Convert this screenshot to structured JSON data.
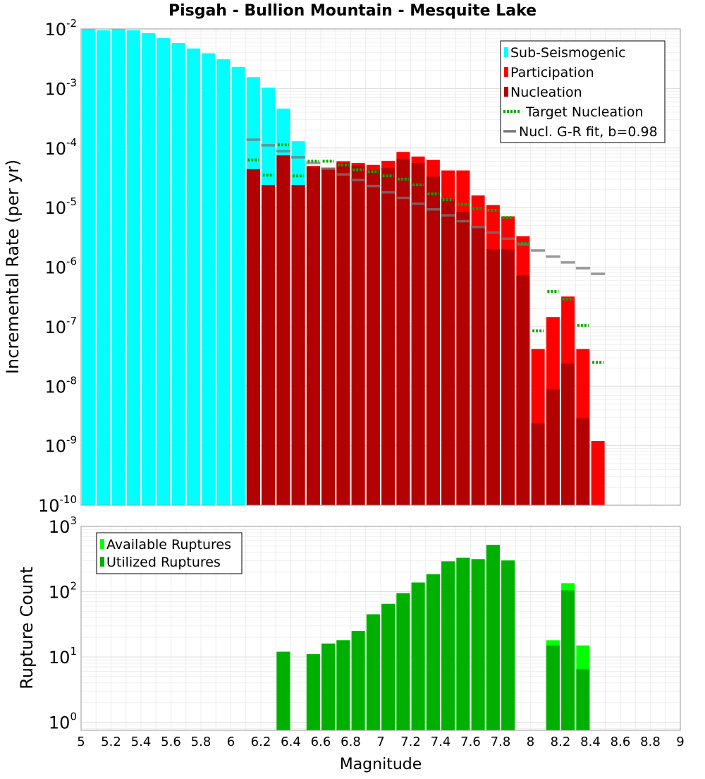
{
  "chart_data": [
    {
      "type": "bar",
      "title": "Pisgah - Bullion Mountain - Mesquite Lake",
      "ylabel": "Incremental Rate (per yr)",
      "xlabel": "",
      "xlim": [
        5,
        9
      ],
      "ylim": [
        1e-10,
        0.01
      ],
      "yscale": "log",
      "grid": true,
      "legend_position": "top-right",
      "y_tick_labels": [
        {
          "base": "10",
          "exp": "-10",
          "value": 1e-10
        },
        {
          "base": "10",
          "exp": "-9",
          "value": 1e-09
        },
        {
          "base": "10",
          "exp": "-8",
          "value": 1e-08
        },
        {
          "base": "10",
          "exp": "-7",
          "value": 1e-07
        },
        {
          "base": "10",
          "exp": "-6",
          "value": 1e-06
        },
        {
          "base": "10",
          "exp": "-5",
          "value": 1e-05
        },
        {
          "base": "10",
          "exp": "-4",
          "value": 0.0001
        },
        {
          "base": "10",
          "exp": "-3",
          "value": 0.001
        },
        {
          "base": "10",
          "exp": "-2",
          "value": 0.01
        }
      ],
      "series": [
        {
          "name": "Sub-Seismogenic",
          "kind": "bar",
          "color": "#00ffff",
          "x": [
            5.05,
            5.15,
            5.25,
            5.35,
            5.45,
            5.55,
            5.65,
            5.75,
            5.85,
            5.95,
            6.05,
            6.15,
            6.25,
            6.35,
            6.45
          ],
          "values": [
            0.011,
            0.0095,
            0.0105,
            0.0095,
            0.0085,
            0.007,
            0.0058,
            0.0047,
            0.0039,
            0.0031,
            0.0023,
            0.00155,
            0.00103,
            0.00046,
            0.00013
          ]
        },
        {
          "name": "Participation",
          "kind": "bar",
          "color": "#ff0000",
          "x": [
            6.15,
            6.25,
            6.35,
            6.45,
            6.55,
            6.65,
            6.75,
            6.85,
            6.95,
            7.05,
            7.15,
            7.25,
            7.35,
            7.45,
            7.55,
            7.65,
            7.75,
            7.85,
            7.95,
            8.05,
            8.15,
            8.25,
            8.35,
            8.45
          ],
          "values": [
            4.4e-05,
            2.4e-05,
            7.5e-05,
            2.4e-05,
            5e-05,
            4.6e-05,
            6e-05,
            5.6e-05,
            5.2e-05,
            6.1e-05,
            8.6e-05,
            7.2e-05,
            6.3e-05,
            4.2e-05,
            4.2e-05,
            1.6e-05,
            1.1e-05,
            7.1e-06,
            3.3e-06,
            4.2e-08,
            1.45e-07,
            3.2e-07,
            4.2e-08,
            1.2e-09
          ]
        },
        {
          "name": "Nucleation",
          "kind": "bar",
          "color": "#b30000",
          "x": [
            6.15,
            6.25,
            6.35,
            6.45,
            6.55,
            6.65,
            6.75,
            6.85,
            6.95,
            7.05,
            7.15,
            7.25,
            7.35,
            7.45,
            7.55,
            7.65,
            7.75,
            7.85,
            7.95,
            8.05,
            8.15,
            8.25,
            8.35
          ],
          "values": [
            4.4e-05,
            2.4e-05,
            7.5e-05,
            2.4e-05,
            4.8e-05,
            4.4e-05,
            5.6e-05,
            5.1e-05,
            4.3e-05,
            4.6e-05,
            6.5e-05,
            5.6e-05,
            3.3e-05,
            1.4e-05,
            8.5e-06,
            4.9e-06,
            2e-06,
            2e-06,
            7.2e-07,
            2.4e-09,
            9e-09,
            2.4e-08,
            2.9e-09
          ]
        },
        {
          "name": "Target Nucleation",
          "kind": "dotted-step",
          "color": "#00aa00",
          "x": [
            6.15,
            6.25,
            6.35,
            6.45,
            6.55,
            6.65,
            6.75,
            6.85,
            6.95,
            7.05,
            7.15,
            7.25,
            7.35,
            7.45,
            7.55,
            7.65,
            7.75,
            7.85,
            7.95,
            8.05,
            8.15,
            8.25,
            8.35,
            8.45
          ],
          "values": [
            6.3e-05,
            3.5e-05,
            0.000113,
            3.4e-05,
            6e-05,
            6e-05,
            5.2e-05,
            4.3e-05,
            4e-05,
            3.4e-05,
            3e-05,
            2.4e-05,
            1.7e-05,
            1.35e-05,
            1.13e-05,
            9.6e-06,
            9e-06,
            6.8e-06,
            2.5e-06,
            8.5e-08,
            3.9e-07,
            2.9e-07,
            1.05e-07,
            2.5e-08
          ]
        },
        {
          "name": "Nucl. G-R fit, b=0.98",
          "kind": "step",
          "color": "#777777",
          "x": [
            6.15,
            6.25,
            6.35,
            6.45,
            6.55,
            6.65,
            6.75,
            6.85,
            6.95,
            7.05,
            7.15,
            7.25,
            7.35,
            7.45,
            7.55,
            7.65,
            7.75,
            7.85,
            7.95,
            8.05,
            8.15,
            8.25,
            8.35,
            8.45
          ],
          "values": [
            0.000138,
            0.000111,
            8.8e-05,
            7e-05,
            5.6e-05,
            4.5e-05,
            3.6e-05,
            2.9e-05,
            2.3e-05,
            1.8e-05,
            1.45e-05,
            1.16e-05,
            9.3e-06,
            7.4e-06,
            5.9e-06,
            4.7e-06,
            3.8e-06,
            3e-06,
            2.4e-06,
            1.9e-06,
            1.5e-06,
            1.2e-06,
            9.6e-07,
            7.7e-07
          ]
        }
      ]
    },
    {
      "type": "bar",
      "title": "",
      "ylabel": "Rupture Count",
      "xlabel": "Magnitude",
      "xlim": [
        5,
        9
      ],
      "ylim": [
        0.75,
        1000
      ],
      "yscale": "log",
      "grid": true,
      "legend_position": "top-left",
      "x_tick_labels": [
        "5",
        "5.2",
        "5.4",
        "5.6",
        "5.8",
        "6",
        "6.2",
        "6.4",
        "6.6",
        "6.8",
        "7",
        "7.2",
        "7.4",
        "7.6",
        "7.8",
        "8",
        "8.2",
        "8.4",
        "8.6",
        "8.8",
        "9"
      ],
      "y_tick_labels": [
        {
          "base": "10",
          "exp": "0",
          "value": 1
        },
        {
          "base": "10",
          "exp": "1",
          "value": 10
        },
        {
          "base": "10",
          "exp": "2",
          "value": 100
        },
        {
          "base": "10",
          "exp": "3",
          "value": 1000
        }
      ],
      "series": [
        {
          "name": "Available Ruptures",
          "kind": "bar",
          "color": "#00ff00",
          "x": [
            6.35,
            6.55,
            6.65,
            6.75,
            6.85,
            6.95,
            7.05,
            7.15,
            7.25,
            7.35,
            7.45,
            7.55,
            7.65,
            7.75,
            7.85,
            8.15,
            8.25,
            8.35
          ],
          "values": [
            12,
            11,
            16,
            18,
            25,
            45,
            65,
            95,
            138,
            185,
            292,
            330,
            315,
            520,
            300,
            18,
            135,
            15
          ]
        },
        {
          "name": "Utilized Ruptures",
          "kind": "bar",
          "color": "#00b000",
          "x": [
            6.35,
            6.55,
            6.65,
            6.75,
            6.85,
            6.95,
            7.05,
            7.15,
            7.25,
            7.35,
            7.45,
            7.55,
            7.65,
            7.75,
            7.85,
            8.15,
            8.25,
            8.35
          ],
          "values": [
            12,
            11,
            16,
            18,
            25,
            45,
            65,
            95,
            138,
            185,
            292,
            330,
            315,
            520,
            300,
            15,
            105,
            6.5
          ]
        }
      ]
    }
  ]
}
